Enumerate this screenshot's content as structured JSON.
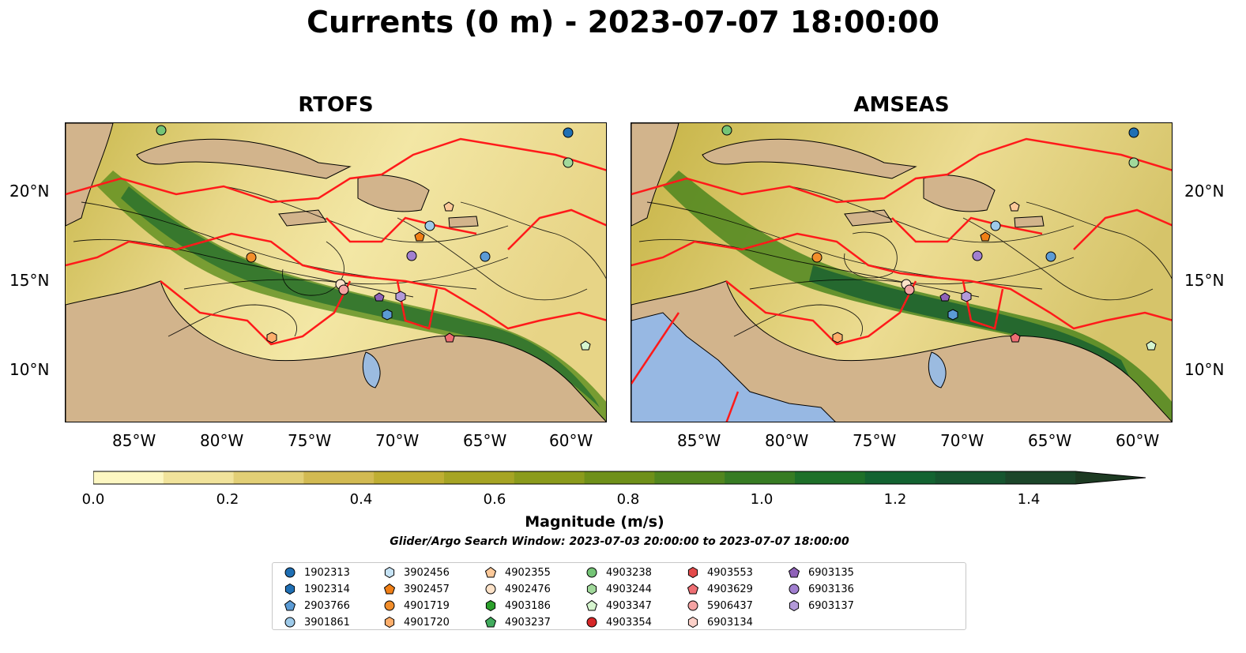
{
  "title": "Currents (0 m) - 2023-07-07 18:00:00",
  "panels": [
    {
      "title": "RTOFS"
    },
    {
      "title": "AMSEAS"
    }
  ],
  "x_ticks": [
    "85°W",
    "80°W",
    "75°W",
    "70°W",
    "65°W",
    "60°W"
  ],
  "y_ticks": [
    "20°N",
    "15°N",
    "10°N"
  ],
  "colorbar": {
    "label": "Magnitude (m/s)",
    "ticks": [
      "0.0",
      "0.2",
      "0.4",
      "0.6",
      "0.8",
      "1.0",
      "1.2",
      "1.4"
    ],
    "min": 0.0,
    "max": 1.5,
    "colors": [
      "#fdf7c2",
      "#f1e39b",
      "#e2cf76",
      "#d2ba52",
      "#bfae33",
      "#a6a424",
      "#8b9b1c",
      "#6f9019",
      "#52861e",
      "#377c23",
      "#1e7029",
      "#136331",
      "#16552f",
      "#1c462a",
      "#1d3a22"
    ]
  },
  "search_window": "Glider/Argo Search Window: 2023-07-03 20:00:00 to 2023-07-07 18:00:00",
  "legend": [
    {
      "id": "1902313",
      "color": "#1f6fb4",
      "marker": "circle"
    },
    {
      "id": "1902314",
      "color": "#1f6fb4",
      "marker": "hexagon"
    },
    {
      "id": "2903766",
      "color": "#5b9bd5",
      "marker": "pentagon"
    },
    {
      "id": "3901861",
      "color": "#9ecae9",
      "marker": "circle"
    },
    {
      "id": "3902456",
      "color": "#c6e3f5",
      "marker": "hexagon"
    },
    {
      "id": "3902457",
      "color": "#f07f16",
      "marker": "pentagon"
    },
    {
      "id": "4901719",
      "color": "#f28e2b",
      "marker": "circle"
    },
    {
      "id": "4901720",
      "color": "#fdae6b",
      "marker": "hexagon"
    },
    {
      "id": "4902355",
      "color": "#fdc999",
      "marker": "pentagon"
    },
    {
      "id": "4902476",
      "color": "#fde2c8",
      "marker": "circle"
    },
    {
      "id": "4903186",
      "color": "#2ca02c",
      "marker": "hexagon"
    },
    {
      "id": "4903237",
      "color": "#41ab5d",
      "marker": "pentagon"
    },
    {
      "id": "4903238",
      "color": "#74c476",
      "marker": "circle"
    },
    {
      "id": "4903244",
      "color": "#a1d99b",
      "marker": "hexagon"
    },
    {
      "id": "4903347",
      "color": "#d6f5cf",
      "marker": "pentagon"
    },
    {
      "id": "4903354",
      "color": "#d62728",
      "marker": "circle"
    },
    {
      "id": "4903553",
      "color": "#e34a4a",
      "marker": "hexagon"
    },
    {
      "id": "4903629",
      "color": "#ee6e73",
      "marker": "pentagon"
    },
    {
      "id": "5906437",
      "color": "#f4a3a3",
      "marker": "circle"
    },
    {
      "id": "6903134",
      "color": "#fbd0c8",
      "marker": "hexagon"
    },
    {
      "id": "6903135",
      "color": "#8f62b8",
      "marker": "pentagon"
    },
    {
      "id": "6903136",
      "color": "#a17fd0",
      "marker": "circle"
    },
    {
      "id": "6903137",
      "color": "#b39ad9",
      "marker": "hexagon"
    }
  ]
}
